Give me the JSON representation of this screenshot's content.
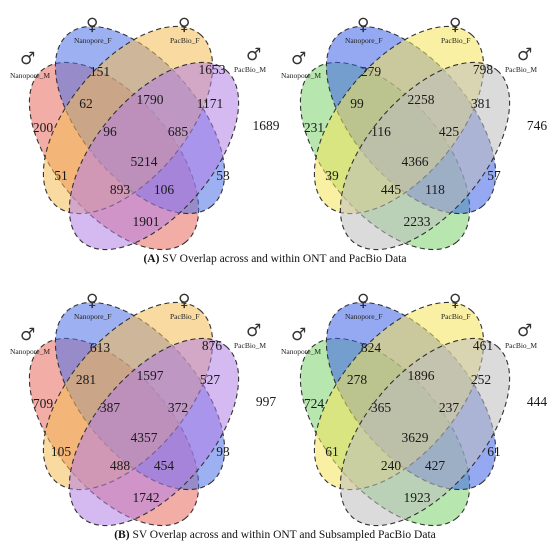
{
  "panels": [
    {
      "id": "A",
      "palette": [
        "#e9695f",
        "#4d6fe6",
        "#f4bb52",
        "#b27fe6"
      ],
      "labels": [
        {
          "sym": "♂",
          "text": "Nanopore_M"
        },
        {
          "sym": "♀",
          "text": "Nanopore_F"
        },
        {
          "sym": "♀",
          "text": "PacBio_F"
        },
        {
          "sym": "♂",
          "text": "PacBio_M"
        }
      ],
      "regions": {
        "a": "200",
        "b": "151",
        "c": "1653",
        "d": "1689",
        "ab": "62",
        "bc": "1790",
        "cd": "1171",
        "abc": "96",
        "bcd": "685",
        "abcd": "5214",
        "ac": "51",
        "bd": "53",
        "acd": "106",
        "abd": "893",
        "ad": "1901"
      }
    },
    {
      "id": "A2",
      "palette": [
        "#7bd46d",
        "#3d62e8",
        "#f5e45a",
        "#bdbdbd"
      ],
      "labels": [
        {
          "sym": "♂",
          "text": "Nanopore_M"
        },
        {
          "sym": "♀",
          "text": "Nanopore_F"
        },
        {
          "sym": "♀",
          "text": "PacBio_F"
        },
        {
          "sym": "♂",
          "text": "PacBio_M"
        }
      ],
      "regions": {
        "a": "231",
        "b": "279",
        "c": "798",
        "d": "746",
        "ab": "99",
        "bc": "2258",
        "cd": "381",
        "abc": "116",
        "bcd": "425",
        "abcd": "4366",
        "ac": "39",
        "bd": "57",
        "acd": "118",
        "abd": "445",
        "ad": "2233"
      }
    },
    {
      "id": "B",
      "palette": [
        "#e9695f",
        "#4d6fe6",
        "#f4bb52",
        "#b27fe6"
      ],
      "labels": [
        {
          "sym": "♂",
          "text": "Nanopore_M"
        },
        {
          "sym": "♀",
          "text": "Nanopore_F"
        },
        {
          "sym": "♀",
          "text": "PacBio_F"
        },
        {
          "sym": "♂",
          "text": "PacBio_M"
        }
      ],
      "regions": {
        "a": "709",
        "b": "613",
        "c": "876",
        "d": "997",
        "ab": "281",
        "bc": "1597",
        "cd": "527",
        "abc": "387",
        "bcd": "372",
        "abcd": "4357",
        "ac": "105",
        "bd": "93",
        "acd": "454",
        "abd": "488",
        "ad": "1742"
      }
    },
    {
      "id": "B2",
      "palette": [
        "#7bd46d",
        "#3d62e8",
        "#f5e45a",
        "#bdbdbd"
      ],
      "labels": [
        {
          "sym": "♂",
          "text": "Nanopore_M"
        },
        {
          "sym": "♀",
          "text": "Nanopore_F"
        },
        {
          "sym": "♀",
          "text": "PacBio_F"
        },
        {
          "sym": "♂",
          "text": "PacBio_M"
        }
      ],
      "regions": {
        "a": "724",
        "b": "824",
        "c": "461",
        "d": "444",
        "ab": "278",
        "bc": "1896",
        "cd": "252",
        "abc": "365",
        "bcd": "237",
        "abcd": "3629",
        "ac": "61",
        "bd": "61",
        "acd": "427",
        "abd": "240",
        "ad": "1923"
      }
    }
  ],
  "captions": [
    {
      "letter": "(A)",
      "text": " SV Overlap across and within ONT and PacBio Data"
    },
    {
      "letter": "(B)",
      "text": " SV Overlap across and within ONT and Subsampled PacBio Data"
    }
  ]
}
